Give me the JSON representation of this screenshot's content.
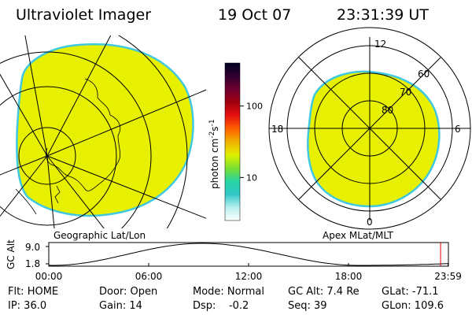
{
  "header": {
    "title": "Ultraviolet Imager",
    "date": "19 Oct 07",
    "time": "23:31:39 UT"
  },
  "colorbar": {
    "unit_prefix": "photon cm",
    "unit_exp1": "-2",
    "unit_mid": "s",
    "unit_exp2": "-1",
    "ticks": [
      {
        "label": "100",
        "value": 100
      },
      {
        "label": "10",
        "value": 10
      }
    ],
    "min_value": 2.5,
    "max_value": 400,
    "stops": [
      "#ffffff",
      "#b8f0f0",
      "#30c8c8",
      "#28d4a0",
      "#7ce030",
      "#e0f000",
      "#f0b000",
      "#ff6000",
      "#e81010",
      "#a00010",
      "#700030",
      "#300030",
      "#000020"
    ]
  },
  "left_panel": {
    "caption": "Geographic Lat/Lon",
    "fill_color": "#e6f000",
    "edge_color": "#40c8e0"
  },
  "right_panel": {
    "caption": "Apex MLat/MLT",
    "fill_color": "#e6f000",
    "edge_color": "#40c8e0",
    "mlt_labels": {
      "top": "12",
      "right": "6",
      "bottom": "0",
      "left": "18"
    },
    "lat_labels": [
      {
        "label": "80",
        "mlat": 80
      },
      {
        "label": "70",
        "mlat": 70
      },
      {
        "label": "60",
        "mlat": 60
      }
    ],
    "mlat_range": [
      50,
      90
    ]
  },
  "altitude_plot": {
    "ylabel": "GC Alt",
    "y_ticks": [
      {
        "label": "9.0",
        "value": 9.0
      },
      {
        "label": "1.8",
        "value": 1.8
      }
    ],
    "x_ticks": [
      "00:00",
      "06:00",
      "12:00",
      "18:00",
      "23:59"
    ],
    "x_tick_hours": [
      0,
      6,
      12,
      18,
      23.98
    ],
    "current_hour": 23.53,
    "marker_color": "#e00000",
    "apogee_hours": [
      9.2
    ],
    "perigee_hours": [
      0.2,
      18.6
    ]
  },
  "footer": {
    "row1": [
      {
        "label": "Flt: HOME"
      },
      {
        "label": "Door: Open"
      },
      {
        "label": "Mode: Normal"
      },
      {
        "label": "GC Alt: 7.4 Re"
      },
      {
        "label": "GLat: -71.1"
      }
    ],
    "row2": [
      {
        "label": "IP: 36.0"
      },
      {
        "label": "Gain: 14"
      },
      {
        "label": "Dsp:    -0.2"
      },
      {
        "label": "Seq: 39"
      },
      {
        "label": "GLon: 109.6"
      }
    ]
  }
}
